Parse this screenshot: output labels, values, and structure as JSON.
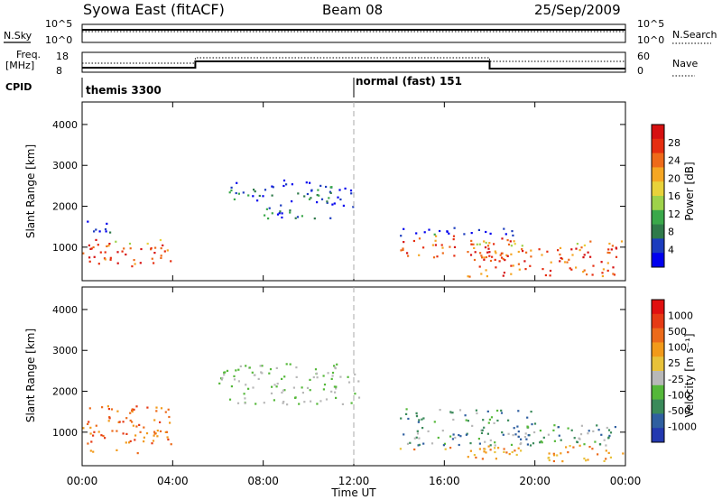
{
  "header": {
    "title": "Syowa East (fitACF)",
    "beam": "Beam 08",
    "date": "25/Sep/2009"
  },
  "top_panels": {
    "nsky_label": "N.Sky",
    "nsky_ticks": [
      "10^5",
      "10^0"
    ],
    "nsearch_label": "N.Search",
    "nsearch_ticks": [
      "10^5",
      "10^0"
    ],
    "freq_label_line1": "Freq.",
    "freq_label_line2": "[MHz]",
    "freq_ticks": [
      "18",
      "8"
    ],
    "nave_label": "Nave",
    "nave_ticks": [
      "60",
      "0"
    ],
    "cpid_label": "CPID",
    "cpid_modes": [
      {
        "name": "themis 3300",
        "start_hour": 0,
        "end_hour": 12
      },
      {
        "name": "normal (fast) 151",
        "start_hour": 12,
        "end_hour": 24
      }
    ]
  },
  "chart_data": [
    {
      "type": "heatmap",
      "panel": "power",
      "ylabel": "Slant Range [km]",
      "xlabel": "Time UT",
      "x_ticks": [
        "00:00",
        "04:00",
        "08:00",
        "12:00",
        "16:00",
        "20:00",
        "00:00"
      ],
      "x_hours": [
        0,
        4,
        8,
        12,
        16,
        20,
        24
      ],
      "xlim": [
        0,
        24
      ],
      "y_ticks": [
        1000,
        2000,
        3000,
        4000
      ],
      "ylim": [
        180,
        4550
      ],
      "colorbar": {
        "label": "Power [dB]",
        "ticks": [
          "4",
          "8",
          "12",
          "16",
          "20",
          "24",
          "28"
        ],
        "colors": [
          "#0000ee",
          "#1c3cbe",
          "#2f7a4a",
          "#3aa84a",
          "#9ed24a",
          "#e8d23a",
          "#f5a623",
          "#ee6a1a",
          "#e62e10",
          "#d61010"
        ]
      },
      "scatter_regions": [
        {
          "hour_start": 0.0,
          "hour_end": 1.2,
          "range_lo": 500,
          "range_hi": 1800
        },
        {
          "hour_start": 1.2,
          "hour_end": 4.0,
          "range_lo": 550,
          "range_hi": 1200
        },
        {
          "hour_start": 6.0,
          "hour_end": 8.2,
          "range_lo": 2150,
          "range_hi": 2600
        },
        {
          "hour_start": 8.0,
          "hour_end": 11.0,
          "range_lo": 1700,
          "range_hi": 2700
        },
        {
          "hour_start": 11.0,
          "hour_end": 12.2,
          "range_lo": 2000,
          "range_hi": 2500
        },
        {
          "hour_start": 14.0,
          "hour_end": 19.0,
          "range_lo": 700,
          "range_hi": 1500
        },
        {
          "hour_start": 17.0,
          "hour_end": 24.0,
          "range_lo": 300,
          "range_hi": 1200
        }
      ]
    },
    {
      "type": "heatmap",
      "panel": "velocity",
      "ylabel": "Slant Range [km]",
      "xlabel": "Time UT",
      "x_ticks": [
        "00:00",
        "04:00",
        "08:00",
        "12:00",
        "16:00",
        "20:00",
        "00:00"
      ],
      "x_hours": [
        0,
        4,
        8,
        12,
        16,
        20,
        24
      ],
      "xlim": [
        0,
        24
      ],
      "y_ticks": [
        1000,
        2000,
        3000,
        4000
      ],
      "ylim": [
        180,
        4550
      ],
      "colorbar": {
        "label": "Velocity [m s⁻¹]",
        "ticks": [
          "1000",
          "500",
          "100",
          "25",
          "-25",
          "-100",
          "-500",
          "-1000"
        ],
        "colors": [
          "#2339b0",
          "#2f5fa0",
          "#3a8a5a",
          "#55b83a",
          "#b8b8b8",
          "#e8c23a",
          "#f29a1a",
          "#ec6a1a",
          "#e63a14",
          "#e01010"
        ]
      },
      "scatter_regions": [
        {
          "hour_start": 0.0,
          "hour_end": 4.0,
          "range_lo": 500,
          "range_hi": 1700
        },
        {
          "hour_start": 6.0,
          "hour_end": 12.2,
          "range_lo": 1700,
          "range_hi": 2700
        },
        {
          "hour_start": 14.0,
          "hour_end": 20.0,
          "range_lo": 600,
          "range_hi": 1600
        },
        {
          "hour_start": 17.0,
          "hour_end": 24.0,
          "range_lo": 300,
          "range_hi": 1200
        }
      ]
    }
  ]
}
